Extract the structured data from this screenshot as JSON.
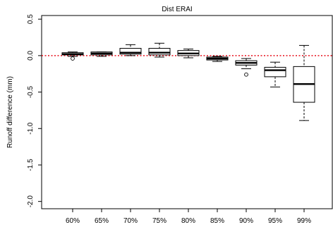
{
  "chart_data": {
    "type": "box",
    "title": "Dist ERAI",
    "xlabel": "",
    "ylabel": "Runoff difference (mm)",
    "ylim": [
      -2.1,
      0.55
    ],
    "yticks": [
      0.5,
      0.0,
      -0.5,
      -1.0,
      -1.5,
      -2.0
    ],
    "ytick_labels": [
      "0.5",
      "0.0",
      "-0.5",
      "-1.0",
      "-1.5",
      "-2.0"
    ],
    "categories": [
      "60%",
      "65%",
      "70%",
      "75%",
      "80%",
      "85%",
      "90%",
      "95%",
      "99%"
    ],
    "boxes": [
      {
        "category": "60%",
        "whisker_low": -0.01,
        "q1": 0.01,
        "median": 0.02,
        "q3": 0.04,
        "whisker_high": 0.05,
        "outliers": [
          -0.04
        ]
      },
      {
        "category": "65%",
        "whisker_low": -0.01,
        "q1": 0.01,
        "median": 0.03,
        "q3": 0.05,
        "whisker_high": 0.05,
        "outliers": []
      },
      {
        "category": "70%",
        "whisker_low": 0.0,
        "q1": 0.02,
        "median": 0.04,
        "q3": 0.1,
        "whisker_high": 0.15,
        "outliers": []
      },
      {
        "category": "75%",
        "whisker_low": -0.02,
        "q1": 0.01,
        "median": 0.04,
        "q3": 0.1,
        "whisker_high": 0.17,
        "outliers": []
      },
      {
        "category": "80%",
        "whisker_low": -0.03,
        "q1": 0.0,
        "median": 0.03,
        "q3": 0.07,
        "whisker_high": 0.09,
        "outliers": []
      },
      {
        "category": "85%",
        "whisker_low": -0.08,
        "q1": -0.06,
        "median": -0.04,
        "q3": -0.02,
        "whisker_high": -0.01,
        "outliers": []
      },
      {
        "category": "90%",
        "whisker_low": -0.18,
        "q1": -0.13,
        "median": -0.1,
        "q3": -0.07,
        "whisker_high": -0.04,
        "outliers": [
          -0.26
        ]
      },
      {
        "category": "95%",
        "whisker_low": -0.43,
        "q1": -0.29,
        "median": -0.2,
        "q3": -0.16,
        "whisker_high": -0.09,
        "outliers": []
      },
      {
        "category": "99%",
        "whisker_low": -0.89,
        "q1": -0.64,
        "median": -0.39,
        "q3": -0.15,
        "whisker_high": 0.14,
        "outliers": []
      }
    ],
    "reference_line": {
      "y": 0.0,
      "style": "dotted",
      "color": "#e8101e"
    },
    "grid": false,
    "legend": "none",
    "colors": {
      "box_fill": "#ffffff",
      "box_stroke": "#000000",
      "median": "#000000"
    }
  }
}
